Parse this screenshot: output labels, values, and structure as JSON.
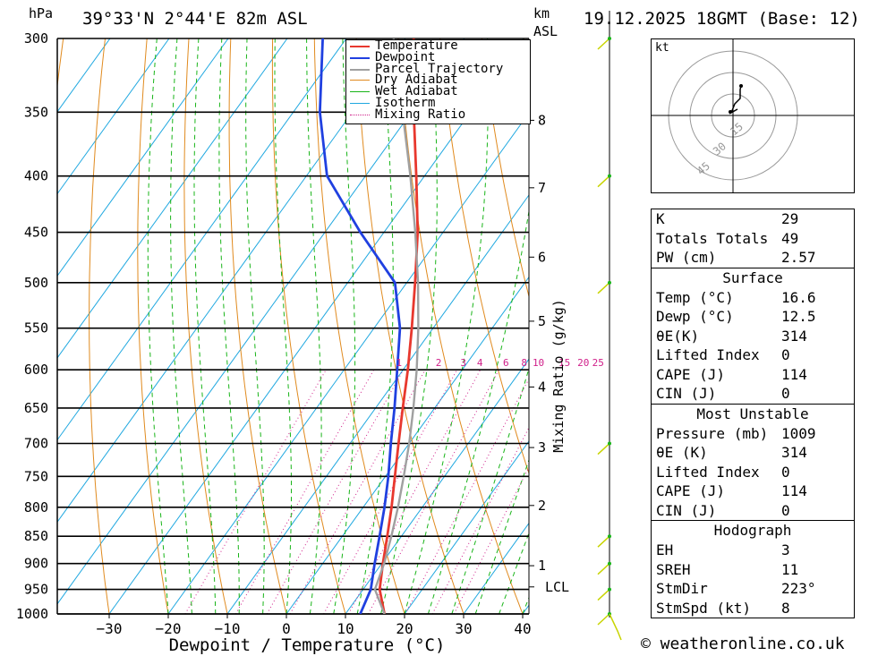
{
  "header": {
    "location": "39°33'N 2°44'E 82m ASL",
    "datetime": "19.12.2025 18GMT (Base: 12)",
    "pressure_unit": "hPa",
    "height_unit_km": "km",
    "height_unit_asl": "ASL"
  },
  "chart_data": {
    "type": "line",
    "title": "Skew-T log-P diagram",
    "xlabel": "Dewpoint / Temperature (°C)",
    "ylabel": "hPa",
    "right_axis_label": "Mixing Ratio (g/kg)",
    "x_ticks": [
      -30,
      -20,
      -10,
      0,
      10,
      20,
      30,
      40
    ],
    "x_tick_labels": [
      "−30",
      "−20",
      "−10",
      "0",
      "10",
      "20",
      "30",
      "40"
    ],
    "pressure_levels": [
      300,
      350,
      400,
      450,
      500,
      550,
      600,
      650,
      700,
      750,
      800,
      850,
      900,
      950,
      1000
    ],
    "pressure_labels": [
      "300",
      "350",
      "400",
      "450",
      "500",
      "550",
      "600",
      "650",
      "700",
      "750",
      "800",
      "850",
      "900",
      "950",
      "1000"
    ],
    "height_km": [
      {
        "label": "8",
        "p": 356
      },
      {
        "label": "7",
        "p": 410
      },
      {
        "label": "6",
        "p": 474
      },
      {
        "label": "5",
        "p": 542
      },
      {
        "label": "4",
        "p": 622
      },
      {
        "label": "3",
        "p": 706
      },
      {
        "label": "2",
        "p": 797
      },
      {
        "label": "1",
        "p": 904
      },
      {
        "label": "LCL",
        "p": 945
      }
    ],
    "mixing_ratio_labels": [
      {
        "label": "1",
        "t": -10.7
      },
      {
        "label": "2",
        "t": -4.0
      },
      {
        "label": "3",
        "t": 0.2
      },
      {
        "label": "4",
        "t": 3.0
      },
      {
        "label": "6",
        "t": 7.4
      },
      {
        "label": "8",
        "t": 10.5
      },
      {
        "label": "10",
        "t": 12.9
      },
      {
        "label": "15",
        "t": 17.3
      },
      {
        "label": "20",
        "t": 20.5
      },
      {
        "label": "25",
        "t": 23.0
      }
    ],
    "legend": [
      "Temperature",
      "Dewpoint",
      "Parcel Trajectory",
      "Dry Adiabat",
      "Wet Adiabat",
      "Isotherm",
      "Mixing Ratio"
    ],
    "legend_position": "top-right",
    "series": [
      {
        "name": "Temperature",
        "color": "#e8382e",
        "points": [
          [
            1000,
            16.6
          ],
          [
            950,
            12.8
          ],
          [
            900,
            10.2
          ],
          [
            850,
            7.6
          ],
          [
            800,
            4.8
          ],
          [
            750,
            1.6
          ],
          [
            700,
            -1.8
          ],
          [
            650,
            -5.4
          ],
          [
            600,
            -9.2
          ],
          [
            550,
            -13.6
          ],
          [
            500,
            -18.6
          ],
          [
            450,
            -24.3
          ],
          [
            400,
            -31.4
          ],
          [
            350,
            -39.6
          ],
          [
            300,
            -48.6
          ]
        ]
      },
      {
        "name": "Dewpoint",
        "color": "#2040e0",
        "points": [
          [
            1000,
            12.5
          ],
          [
            950,
            11.3
          ],
          [
            900,
            8.8
          ],
          [
            850,
            6.3
          ],
          [
            800,
            3.6
          ],
          [
            750,
            0.5
          ],
          [
            700,
            -3.1
          ],
          [
            650,
            -6.8
          ],
          [
            600,
            -11.0
          ],
          [
            550,
            -15.6
          ],
          [
            500,
            -22.0
          ],
          [
            450,
            -34.0
          ],
          [
            400,
            -46.5
          ],
          [
            350,
            -55.5
          ],
          [
            300,
            -64.0
          ]
        ]
      },
      {
        "name": "Parcel Trajectory",
        "color": "#a0a0a0",
        "points": [
          [
            1000,
            16.6
          ],
          [
            950,
            12.0
          ],
          [
            900,
            10.4
          ],
          [
            850,
            8.3
          ],
          [
            800,
            5.9
          ],
          [
            750,
            3.1
          ],
          [
            700,
            0.0
          ],
          [
            650,
            -3.6
          ],
          [
            600,
            -7.7
          ],
          [
            550,
            -12.5
          ],
          [
            500,
            -18.1
          ],
          [
            450,
            -24.7
          ],
          [
            400,
            -32.4
          ],
          [
            350,
            -41.5
          ],
          [
            300,
            -52.0
          ]
        ]
      }
    ],
    "xlim": [
      -40,
      40
    ],
    "ylim": [
      1000,
      300
    ]
  },
  "hodograph": {
    "unit": "kt",
    "ring_labels": [
      "15",
      "30",
      "45"
    ]
  },
  "indices": [
    {
      "label": "K",
      "value": "29"
    },
    {
      "label": "Totals Totals",
      "value": "49"
    },
    {
      "label": "PW (cm)",
      "value": "2.57"
    }
  ],
  "surface": {
    "title": "Surface",
    "rows": [
      {
        "label": "Temp (°C)",
        "value": "16.6"
      },
      {
        "label": "Dewp (°C)",
        "value": "12.5"
      },
      {
        "label": "θE(K)",
        "value": "314"
      },
      {
        "label": "Lifted Index",
        "value": "0"
      },
      {
        "label": "CAPE (J)",
        "value": "114"
      },
      {
        "label": "CIN (J)",
        "value": "0"
      }
    ]
  },
  "most_unstable": {
    "title": "Most Unstable",
    "rows": [
      {
        "label": "Pressure (mb)",
        "value": "1009"
      },
      {
        "label": "θE (K)",
        "value": "314"
      },
      {
        "label": "Lifted Index",
        "value": "0"
      },
      {
        "label": "CAPE (J)",
        "value": "114"
      },
      {
        "label": "CIN (J)",
        "value": "0"
      }
    ]
  },
  "hodograph_stats": {
    "title": "Hodograph",
    "rows": [
      {
        "label": "EH",
        "value": "3"
      },
      {
        "label": "SREH",
        "value": "11"
      },
      {
        "label": "StmDir",
        "value": "223°"
      },
      {
        "label": "StmSpd (kt)",
        "value": "8"
      }
    ]
  },
  "footer": {
    "copyright": "© weatheronline.co.uk"
  },
  "colors": {
    "temperature": "#e8382e",
    "dewpoint": "#2040e0",
    "parcel": "#a0a0a0",
    "dry_adiabat": "#e08a1e",
    "wet_adiabat": "#18b418",
    "isotherm": "#20a8e0",
    "mixing_ratio": "#d0208a",
    "wind": "#c8d400"
  }
}
